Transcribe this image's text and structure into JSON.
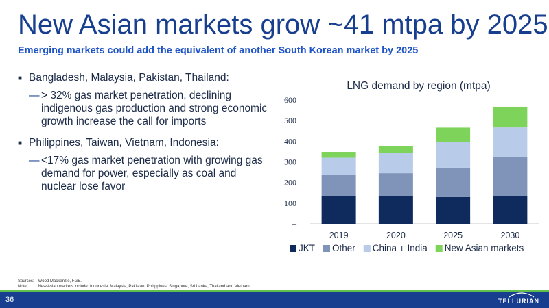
{
  "header": {
    "title": "New Asian markets grow ~41 mtpa by 2025",
    "subtitle": "Emerging markets could add the equivalent of another South Korean market by 2025"
  },
  "bullets": [
    {
      "text": "Bangladesh, Malaysia, Pakistan, Thailand:",
      "sub": "> 32% gas market penetration, declining indigenous gas production and strong economic growth increase the call for imports"
    },
    {
      "text": "Philippines, Taiwan, Vietnam, Indonesia:",
      "sub": "<17% gas market penetration with growing gas demand for power, especially as coal and nuclear lose favor"
    }
  ],
  "chart_data": {
    "type": "bar",
    "stacked": true,
    "title": "LNG demand by region (mtpa)",
    "xlabel": "",
    "ylabel": "",
    "categories": [
      "2019",
      "2020",
      "2025",
      "2030"
    ],
    "ylim": [
      0,
      600
    ],
    "yticks": [
      "–",
      "100",
      "200",
      "300",
      "400",
      "500",
      "600"
    ],
    "legend_position": "bottom",
    "grid": false,
    "series": [
      {
        "name": "JKT",
        "color": "#0f2a5c",
        "values": [
          135,
          135,
          130,
          135
        ]
      },
      {
        "name": "Other",
        "color": "#7f94b8",
        "values": [
          103,
          110,
          142,
          187
        ]
      },
      {
        "name": "China + India",
        "color": "#b8cbe8",
        "values": [
          82,
          97,
          124,
          145
        ]
      },
      {
        "name": "New Asian markets",
        "color": "#7ed35b",
        "values": [
          28,
          33,
          70,
          100
        ]
      }
    ]
  },
  "footnotes": {
    "sources_label": "Sources:",
    "sources_text": "Wood Mackenzie, FGE.",
    "note_label": "Note:",
    "note_text": "New Asian markets include: Indonesia, Malaysia, Pakistan, Philippines, Singapore, Sri Lanka, Thailand and Vietnam."
  },
  "footer": {
    "page_number": "36",
    "logo_text": "TELLURIAN"
  }
}
